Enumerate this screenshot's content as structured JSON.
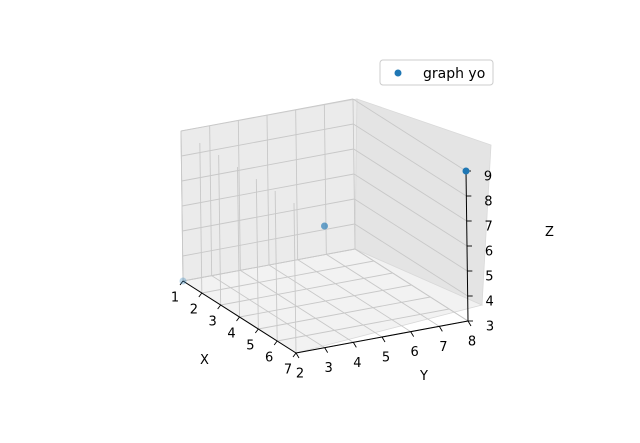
{
  "chart_data": {
    "type": "scatter",
    "projection": "3d",
    "xlabel": "X",
    "ylabel": "Y",
    "zlabel": "Z",
    "x_ticks": [
      "1",
      "2",
      "3",
      "4",
      "5",
      "6",
      "7"
    ],
    "y_ticks": [
      "2",
      "3",
      "4",
      "5",
      "6",
      "7",
      "8"
    ],
    "z_ticks": [
      "3",
      "4",
      "5",
      "6",
      "7",
      "8",
      "9"
    ],
    "xlim": [
      1,
      7
    ],
    "ylim": [
      2,
      8
    ],
    "zlim": [
      3,
      9
    ],
    "grid": true,
    "legend_position": "top-right",
    "series": [
      {
        "name": "graph yo",
        "color": "#1f77b4",
        "points": [
          {
            "x": 1,
            "y": 2,
            "z": 3
          },
          {
            "x": 4,
            "y": 5,
            "z": 6
          },
          {
            "x": 7,
            "y": 8,
            "z": 9
          }
        ]
      }
    ]
  }
}
